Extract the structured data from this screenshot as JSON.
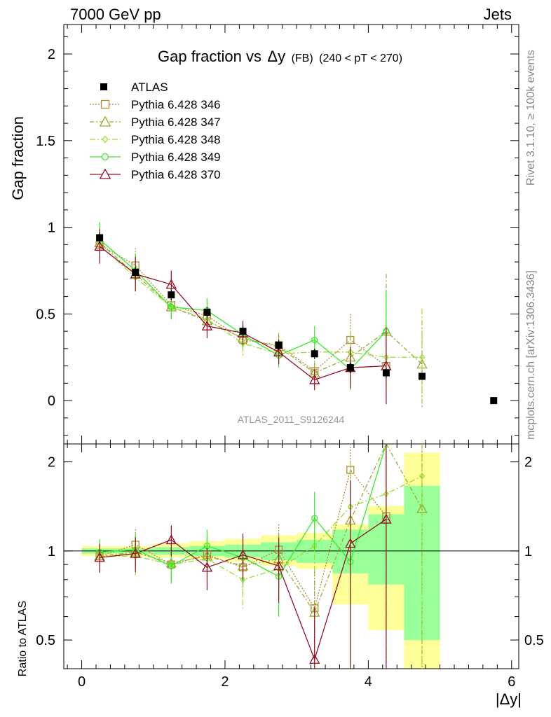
{
  "header": {
    "left": "7000 GeV pp",
    "right": "Jets"
  },
  "side_labels": {
    "rivet": "Rivet 3.1.10, ≥ 100k events",
    "mcplots": "mcplots.cern.ch [arXiv:1306.3436]"
  },
  "chart_data": {
    "type": "line",
    "title_main": "Gap fraction vs",
    "title_sym": "Δy",
    "title_fb": "(FB)",
    "title_range": "(240 < pT < 270)",
    "ylabel": "Gap fraction",
    "ratio_ylabel": "Ratio to ATLAS",
    "xlabel": "|Δy|",
    "watermark": "ATLAS_2011_S9126244",
    "xlim": [
      -0.25,
      6.1
    ],
    "ylim": [
      -0.25,
      2.17
    ],
    "ratio_ylim": [
      0.4,
      2.3
    ],
    "xticks": [
      "0",
      "2",
      "4",
      "6"
    ],
    "yticks": [
      "0",
      "0.5",
      "1",
      "1.5",
      "2"
    ],
    "ratio_yticks": [
      "0.5",
      "1",
      "2"
    ],
    "ratio_band_edges": [
      0,
      0.5,
      1,
      1.5,
      2,
      2.5,
      3,
      3.5,
      4,
      4.5,
      5
    ],
    "ratio_band_yellow": [
      [
        0.96,
        1.04
      ],
      [
        0.96,
        1.04
      ],
      [
        0.95,
        1.06
      ],
      [
        0.94,
        1.08
      ],
      [
        0.92,
        1.1
      ],
      [
        0.89,
        1.13
      ],
      [
        0.87,
        1.15
      ],
      [
        0.66,
        1.23
      ],
      [
        0.54,
        1.42
      ],
      [
        0.38,
        2.15
      ]
    ],
    "ratio_band_green": [
      [
        0.98,
        1.02
      ],
      [
        0.98,
        1.02
      ],
      [
        0.97,
        1.03
      ],
      [
        0.96,
        1.04
      ],
      [
        0.95,
        1.05
      ],
      [
        0.93,
        1.07
      ],
      [
        0.91,
        1.09
      ],
      [
        0.84,
        1.18
      ],
      [
        0.77,
        1.33
      ],
      [
        0.5,
        1.66
      ]
    ],
    "atlas": {
      "name": "ATLAS",
      "x": [
        0.25,
        0.75,
        1.25,
        1.75,
        2.25,
        2.75,
        3.25,
        3.75,
        4.25,
        4.75,
        5.75
      ],
      "y": [
        0.94,
        0.74,
        0.61,
        0.51,
        0.4,
        0.32,
        0.27,
        0.19,
        0.16,
        0.14,
        0.0
      ],
      "err": [
        0.03,
        0.03,
        0.03,
        0.03,
        0.03,
        0.03,
        0.03,
        0.03,
        0.03,
        0.02,
        0.0
      ]
    },
    "series": [
      {
        "name": "Pythia 6.428 346",
        "color": "#b5893b",
        "dash": "2,2",
        "marker": "square",
        "x": [
          0.25,
          0.75,
          1.25,
          1.75,
          2.25,
          2.75,
          3.25,
          3.75,
          4.25
        ],
        "y": [
          0.9,
          0.78,
          0.55,
          0.49,
          0.35,
          0.32,
          0.17,
          0.35,
          0.2
        ],
        "err": [
          0.1,
          0.1,
          0.07,
          0.07,
          0.07,
          0.07,
          0.06,
          0.15,
          0.2
        ],
        "ratio": [
          0.96,
          1.05,
          0.9,
          0.97,
          0.88,
          1.01,
          0.64,
          1.88,
          1.31
        ]
      },
      {
        "name": "Pythia 6.428 347",
        "color": "#9ca82a",
        "dash": "6,3,2,3",
        "marker": "triangle",
        "x": [
          0.25,
          0.75,
          1.25,
          1.75,
          2.25,
          2.75,
          3.25,
          3.75,
          4.25,
          4.75
        ],
        "y": [
          0.91,
          0.73,
          0.54,
          0.46,
          0.36,
          0.31,
          0.16,
          0.25,
          0.4,
          0.21
        ],
        "err": [
          0.1,
          0.1,
          0.07,
          0.07,
          0.07,
          0.07,
          0.06,
          0.12,
          0.33,
          0.25
        ],
        "ratio": [
          0.96,
          0.99,
          0.91,
          0.96,
          0.89,
          0.94,
          0.62,
          1.27,
          2.4,
          1.39
        ]
      },
      {
        "name": "Pythia 6.428 348",
        "color": "#99dd33",
        "dash": "8,3,2,3",
        "marker": "diamond",
        "x": [
          0.25,
          0.75,
          1.25,
          1.75,
          2.25,
          2.75,
          3.25,
          3.75,
          4.25,
          4.75
        ],
        "y": [
          0.9,
          0.71,
          0.54,
          0.47,
          0.33,
          0.27,
          0.28,
          0.28,
          0.25,
          0.25
        ],
        "err": [
          0.1,
          0.1,
          0.07,
          0.07,
          0.07,
          0.07,
          0.06,
          0.12,
          0.2,
          0.28
        ],
        "ratio": [
          0.96,
          0.96,
          0.9,
          0.94,
          0.8,
          0.87,
          1.04,
          1.41,
          1.56,
          1.79
        ]
      },
      {
        "name": "Pythia 6.428 349",
        "color": "#33ee22",
        "dash": "",
        "marker": "circle",
        "x": [
          0.25,
          0.75,
          1.25,
          1.75,
          2.25,
          2.75,
          3.25,
          3.75,
          4.25
        ],
        "y": [
          0.93,
          0.75,
          0.54,
          0.52,
          0.38,
          0.26,
          0.35,
          0.18,
          0.4
        ],
        "err": [
          0.1,
          0.1,
          0.07,
          0.07,
          0.07,
          0.07,
          0.08,
          0.12,
          0.24
        ],
        "ratio": [
          0.99,
          1.01,
          0.89,
          1.04,
          0.95,
          0.82,
          1.29,
          0.92,
          2.5
        ]
      },
      {
        "name": "Pythia 6.428 370",
        "color": "#990f26",
        "dash": "",
        "marker": "triangle",
        "x": [
          0.25,
          0.75,
          1.25,
          1.75,
          2.25,
          2.75,
          3.25,
          3.75,
          4.25
        ],
        "y": [
          0.89,
          0.73,
          0.67,
          0.43,
          0.39,
          0.28,
          0.12,
          0.19,
          0.2
        ],
        "err": [
          0.1,
          0.1,
          0.08,
          0.07,
          0.07,
          0.07,
          0.06,
          0.12,
          0.22
        ],
        "ratio": [
          0.95,
          0.98,
          1.09,
          0.88,
          0.97,
          0.89,
          0.43,
          1.06,
          1.28
        ]
      }
    ]
  }
}
